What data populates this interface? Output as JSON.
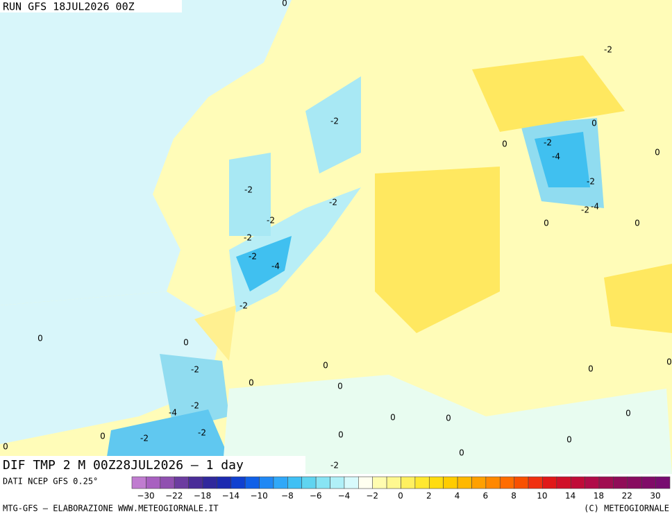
{
  "header": {
    "run": "RUN GFS 18JUL2026 00Z"
  },
  "map": {
    "title": "DIF TMP 2 M 00Z28JUL2026 – 1 day",
    "contour_labels": [
      "0",
      "-2",
      "0",
      "-2",
      "0",
      "-2",
      "-4",
      "0",
      "-2",
      "-2",
      "-2",
      "-2",
      "-4",
      "0",
      "0",
      "-2",
      "-2",
      "-2",
      "-4",
      "-2",
      "0",
      "0",
      "-2",
      "0",
      "0",
      "0",
      "0",
      "0",
      "-2",
      "-4",
      "0",
      "0",
      "0",
      "0",
      "-2",
      "-2",
      "0",
      "0",
      "0",
      "0",
      "-2"
    ]
  },
  "colorbar": {
    "source": "DATI NCEP GFS 0.25°",
    "colors": [
      "#c07cd0",
      "#a860c0",
      "#9050b0",
      "#6c3ca0",
      "#4a2c98",
      "#30289c",
      "#1c2ab0",
      "#1040d0",
      "#1060e8",
      "#2088f4",
      "#30a8f8",
      "#40c0f4",
      "#60d4f0",
      "#88e4f4",
      "#b0f0f8",
      "#d8fafc",
      "#fffff0",
      "#fffcb0",
      "#fff890",
      "#fff060",
      "#ffe830",
      "#ffdc10",
      "#ffcc00",
      "#ffb800",
      "#ffa000",
      "#ff8800",
      "#ff6c00",
      "#f85000",
      "#f03010",
      "#e01818",
      "#d01028",
      "#c00c38",
      "#b00c48",
      "#a00c50",
      "#900c58",
      "#880c60",
      "#800c68",
      "#780c70"
    ],
    "labels": [
      "−30",
      "−22",
      "−18",
      "−14",
      "−10",
      "−8",
      "−6",
      "−4",
      "−2",
      "0",
      "2",
      "4",
      "6",
      "8",
      "10",
      "14",
      "18",
      "22",
      "30"
    ]
  },
  "footer": {
    "left": "MTG-GFS – ELABORAZIONE WWW.METEOGIORNALE.IT",
    "right": "(C) METEOGIORNALE"
  }
}
